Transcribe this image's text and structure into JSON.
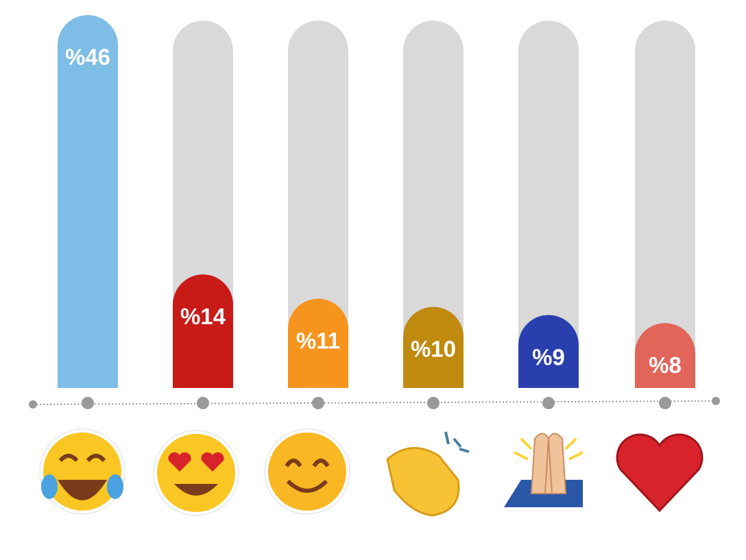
{
  "chart_data": {
    "type": "bar",
    "values": [
      46,
      14,
      11,
      10,
      9,
      8
    ],
    "value_labels": [
      "%46",
      "%14",
      "%11",
      "%10",
      "%9",
      "%8"
    ],
    "colors": [
      "#7dbde6",
      "#c81a17",
      "#f7941d",
      "#c08a0f",
      "#2a3fae",
      "#e2655a"
    ]
  }
}
